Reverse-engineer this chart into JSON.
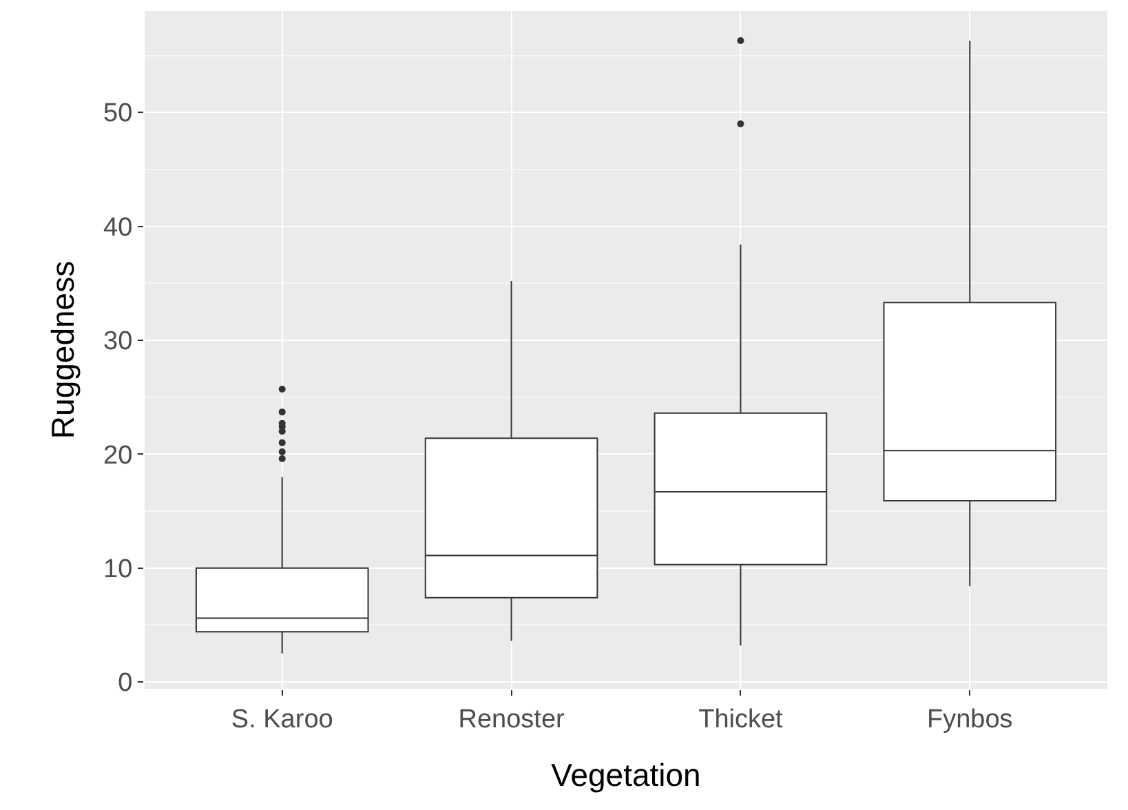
{
  "chart_data": {
    "type": "box",
    "xlabel": "Vegetation",
    "ylabel": "Ruggedness",
    "categories": [
      "S. Karoo",
      "Renoster",
      "Thicket",
      "Fynbos"
    ],
    "boxes": [
      {
        "low": 2.5,
        "q1": 4.4,
        "median": 5.6,
        "q3": 10.0,
        "high": 18.0,
        "outliers": [
          19.6,
          20.2,
          21.0,
          22.0,
          22.4,
          22.7,
          23.7,
          25.7
        ]
      },
      {
        "low": 3.6,
        "q1": 7.4,
        "median": 11.1,
        "q3": 21.4,
        "high": 35.2
      },
      {
        "low": 3.2,
        "q1": 10.3,
        "median": 16.7,
        "q3": 23.6,
        "high": 38.4,
        "outliers": [
          49.0,
          56.3
        ]
      },
      {
        "low": 8.4,
        "q1": 15.9,
        "median": 20.3,
        "q3": 33.3,
        "high": 56.3
      }
    ],
    "color": "#333333",
    "ylim": [
      -0.6,
      58.9
    ],
    "yticks": [
      0,
      10,
      20,
      30,
      40,
      50
    ],
    "grid": true
  }
}
